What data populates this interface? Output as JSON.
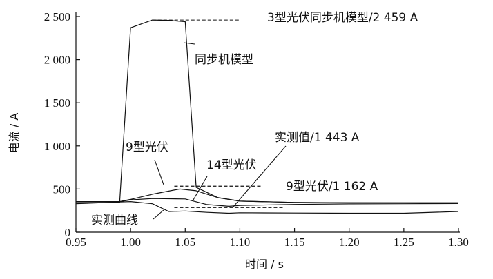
{
  "chart_data": {
    "type": "line",
    "xlabel": "时间 / s",
    "ylabel": "电流 / A",
    "xlim": [
      0.95,
      1.3
    ],
    "ylim": [
      0,
      2500
    ],
    "xticks": [
      "0.95",
      "1.00",
      "1.05",
      "1.10",
      "1.15",
      "1.20",
      "1.25",
      "1.30"
    ],
    "yticks": [
      "0",
      "500",
      "1 000",
      "1 500",
      "2 000",
      "2 500"
    ],
    "grid": false,
    "series": [
      {
        "name": "同步机模型",
        "x": [
          0.95,
          0.99,
          1.0,
          1.02,
          1.035,
          1.05,
          1.06,
          1.08,
          1.1,
          1.15,
          1.2,
          1.25,
          1.3
        ],
        "y": [
          340,
          345,
          2370,
          2459,
          2455,
          2440,
          520,
          400,
          360,
          345,
          340,
          340,
          340
        ]
      },
      {
        "name": "9型光伏",
        "x": [
          0.95,
          0.99,
          1.0,
          1.02,
          1.045,
          1.06,
          1.08,
          1.1,
          1.15,
          1.2,
          1.25,
          1.3
        ],
        "y": [
          355,
          355,
          380,
          440,
          500,
          480,
          400,
          360,
          345,
          342,
          340,
          340
        ]
      },
      {
        "name": "14型光伏",
        "x": [
          0.95,
          0.99,
          1.0,
          1.02,
          1.05,
          1.07,
          1.09,
          1.1,
          1.15,
          1.2,
          1.25,
          1.3
        ],
        "y": [
          355,
          355,
          375,
          390,
          385,
          320,
          300,
          310,
          322,
          328,
          330,
          332
        ]
      },
      {
        "name": "实测曲线",
        "x": [
          0.95,
          0.99,
          1.0,
          1.02,
          1.035,
          1.05,
          1.07,
          1.09,
          1.1,
          1.15,
          1.2,
          1.25,
          1.3
        ],
        "y": [
          330,
          350,
          355,
          330,
          240,
          245,
          230,
          220,
          225,
          222,
          220,
          220,
          240
        ]
      }
    ],
    "reference_lines": [
      {
        "y": 2459,
        "x_from": 1.02,
        "x_to": 1.1,
        "style": "dashed",
        "label": "3型光伏同步机模型/2 459 A"
      },
      {
        "y": 545,
        "x_from": 1.04,
        "x_to": 1.12,
        "style": "dashed",
        "label": "9型光伏/1 162 A"
      },
      {
        "y": 530,
        "x_from": 1.04,
        "x_to": 1.12,
        "style": "dashed",
        "label": ""
      },
      {
        "y": 285,
        "x_from": 1.04,
        "x_to": 1.14,
        "style": "dashed",
        "label": ""
      }
    ],
    "annotations": [
      {
        "text": "同步机模型"
      },
      {
        "text": "9型光伏"
      },
      {
        "text": "14型光伏"
      },
      {
        "text": "实测值/1 443 A"
      },
      {
        "text": "实测曲线"
      }
    ]
  }
}
